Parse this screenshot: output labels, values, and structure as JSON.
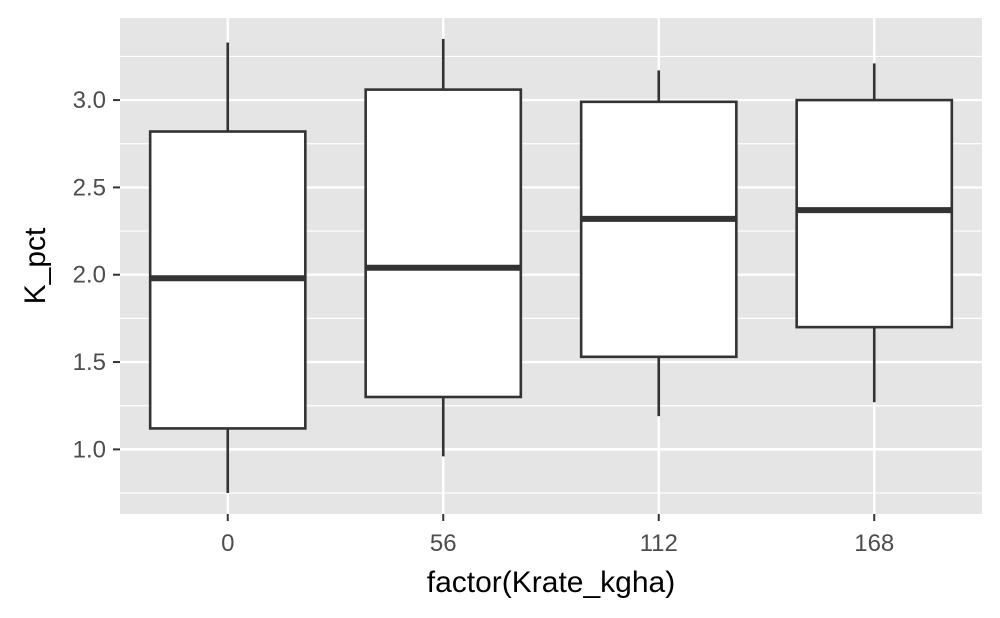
{
  "chart_data": {
    "type": "boxplot",
    "title": "",
    "xlabel": "factor(Krate_kgha)",
    "ylabel": "K_pct",
    "categories": [
      "0",
      "56",
      "112",
      "168"
    ],
    "boxes": [
      {
        "category": "0",
        "whisker_low": 0.75,
        "q1": 1.12,
        "median": 1.98,
        "q3": 2.82,
        "whisker_high": 3.33
      },
      {
        "category": "56",
        "whisker_low": 0.96,
        "q1": 1.3,
        "median": 2.04,
        "q3": 3.06,
        "whisker_high": 3.35
      },
      {
        "category": "112",
        "whisker_low": 1.19,
        "q1": 1.53,
        "median": 2.32,
        "q3": 2.99,
        "whisker_high": 3.17
      },
      {
        "category": "168",
        "whisker_low": 1.27,
        "q1": 1.7,
        "median": 2.37,
        "q3": 3.0,
        "whisker_high": 3.21
      }
    ],
    "y_ticks": [
      1.0,
      1.5,
      2.0,
      2.5,
      3.0
    ],
    "y_tick_labels": [
      "1.0",
      "1.5",
      "2.0",
      "2.5",
      "3.0"
    ],
    "ylim": [
      0.63,
      3.47
    ],
    "grid": true,
    "colors": {
      "panel_background": "#e5e5e5",
      "grid_line": "#ffffff",
      "box_fill": "#ffffff",
      "box_stroke": "#333333",
      "tick_mark": "#333333"
    }
  }
}
